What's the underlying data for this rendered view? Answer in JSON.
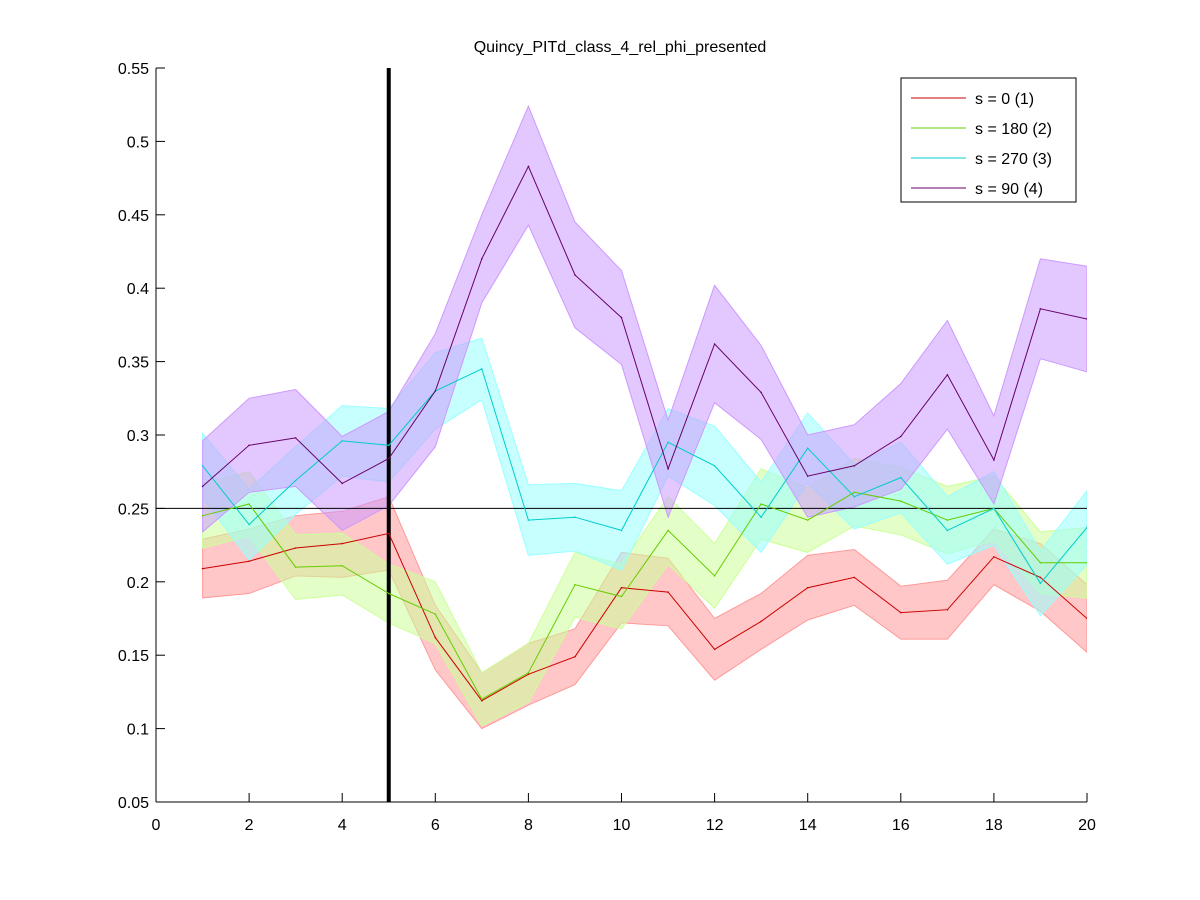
{
  "chart_data": {
    "type": "line",
    "title": "Quincy_PITd_class_4_rel_phi_presented",
    "xlabel": "",
    "ylabel": "",
    "xlim": [
      0,
      20
    ],
    "ylim": [
      0.05,
      0.55
    ],
    "xticks": [
      0,
      2,
      4,
      6,
      8,
      10,
      12,
      14,
      16,
      18,
      20
    ],
    "yticks": [
      0.05,
      0.1,
      0.15,
      0.2,
      0.25,
      0.3,
      0.35,
      0.4,
      0.45,
      0.5,
      0.55
    ],
    "ytick_labels": [
      "0.05",
      "0.1",
      "0.15",
      "0.2",
      "0.25",
      "0.3",
      "0.35",
      "0.4",
      "0.45",
      "0.5",
      "0.55"
    ],
    "grid": false,
    "legend_position": "top-right",
    "reference_lines": {
      "vertical_x": 5,
      "horizontal_y": 0.25
    },
    "x": [
      1,
      2,
      3,
      4,
      5,
      6,
      7,
      8,
      9,
      10,
      11,
      12,
      13,
      14,
      15,
      16,
      17,
      18,
      19,
      20
    ],
    "series": [
      {
        "name": "s = 0 (1)",
        "color": "#cc0000",
        "band_color": "#ff9999",
        "values": [
          0.209,
          0.214,
          0.223,
          0.226,
          0.233,
          0.162,
          0.119,
          0.137,
          0.149,
          0.196,
          0.193,
          0.154,
          0.173,
          0.196,
          0.203,
          0.179,
          0.181,
          0.217,
          0.203,
          0.175
        ],
        "upper": [
          0.229,
          0.236,
          0.245,
          0.248,
          0.258,
          0.184,
          0.138,
          0.158,
          0.168,
          0.22,
          0.216,
          0.175,
          0.192,
          0.218,
          0.222,
          0.197,
          0.201,
          0.236,
          0.226,
          0.198
        ],
        "lower": [
          0.189,
          0.192,
          0.204,
          0.203,
          0.208,
          0.14,
          0.1,
          0.116,
          0.13,
          0.172,
          0.17,
          0.133,
          0.154,
          0.174,
          0.184,
          0.161,
          0.161,
          0.198,
          0.18,
          0.152
        ]
      },
      {
        "name": "s = 180 (2)",
        "color": "#66cc00",
        "band_color": "#ccff99",
        "values": [
          0.245,
          0.253,
          0.21,
          0.211,
          0.192,
          0.178,
          0.12,
          0.138,
          0.198,
          0.19,
          0.235,
          0.204,
          0.253,
          0.242,
          0.261,
          0.255,
          0.242,
          0.25,
          0.213,
          0.213
        ],
        "upper": [
          0.267,
          0.275,
          0.232,
          0.233,
          0.212,
          0.2,
          0.138,
          0.158,
          0.22,
          0.212,
          0.258,
          0.226,
          0.277,
          0.264,
          0.284,
          0.278,
          0.265,
          0.272,
          0.234,
          0.237
        ],
        "lower": [
          0.223,
          0.231,
          0.188,
          0.191,
          0.172,
          0.158,
          0.102,
          0.118,
          0.176,
          0.168,
          0.212,
          0.182,
          0.229,
          0.22,
          0.238,
          0.232,
          0.219,
          0.228,
          0.192,
          0.189
        ]
      },
      {
        "name": "s = 270 (3)",
        "color": "#00cccc",
        "band_color": "#99ffff",
        "values": [
          0.279,
          0.239,
          0.269,
          0.296,
          0.293,
          0.33,
          0.345,
          0.242,
          0.244,
          0.235,
          0.295,
          0.279,
          0.244,
          0.291,
          0.258,
          0.271,
          0.235,
          0.25,
          0.199,
          0.237
        ],
        "upper": [
          0.301,
          0.263,
          0.292,
          0.32,
          0.318,
          0.356,
          0.366,
          0.266,
          0.267,
          0.262,
          0.318,
          0.306,
          0.268,
          0.315,
          0.28,
          0.295,
          0.258,
          0.275,
          0.221,
          0.262
        ],
        "lower": [
          0.257,
          0.215,
          0.246,
          0.272,
          0.268,
          0.304,
          0.324,
          0.218,
          0.221,
          0.208,
          0.272,
          0.252,
          0.22,
          0.267,
          0.236,
          0.247,
          0.212,
          0.225,
          0.177,
          0.212
        ]
      },
      {
        "name": "s = 90 (4)",
        "color": "#660066",
        "band_color": "#cc99ff",
        "values": [
          0.265,
          0.293,
          0.298,
          0.267,
          0.284,
          0.33,
          0.42,
          0.483,
          0.409,
          0.38,
          0.277,
          0.362,
          0.329,
          0.272,
          0.279,
          0.299,
          0.341,
          0.283,
          0.386,
          0.379
        ],
        "upper": [
          0.296,
          0.325,
          0.331,
          0.299,
          0.316,
          0.369,
          0.45,
          0.524,
          0.445,
          0.412,
          0.31,
          0.402,
          0.361,
          0.3,
          0.307,
          0.335,
          0.378,
          0.313,
          0.42,
          0.415
        ],
        "lower": [
          0.234,
          0.261,
          0.265,
          0.235,
          0.252,
          0.292,
          0.39,
          0.443,
          0.373,
          0.348,
          0.244,
          0.322,
          0.297,
          0.244,
          0.251,
          0.263,
          0.304,
          0.253,
          0.352,
          0.343
        ]
      }
    ]
  }
}
